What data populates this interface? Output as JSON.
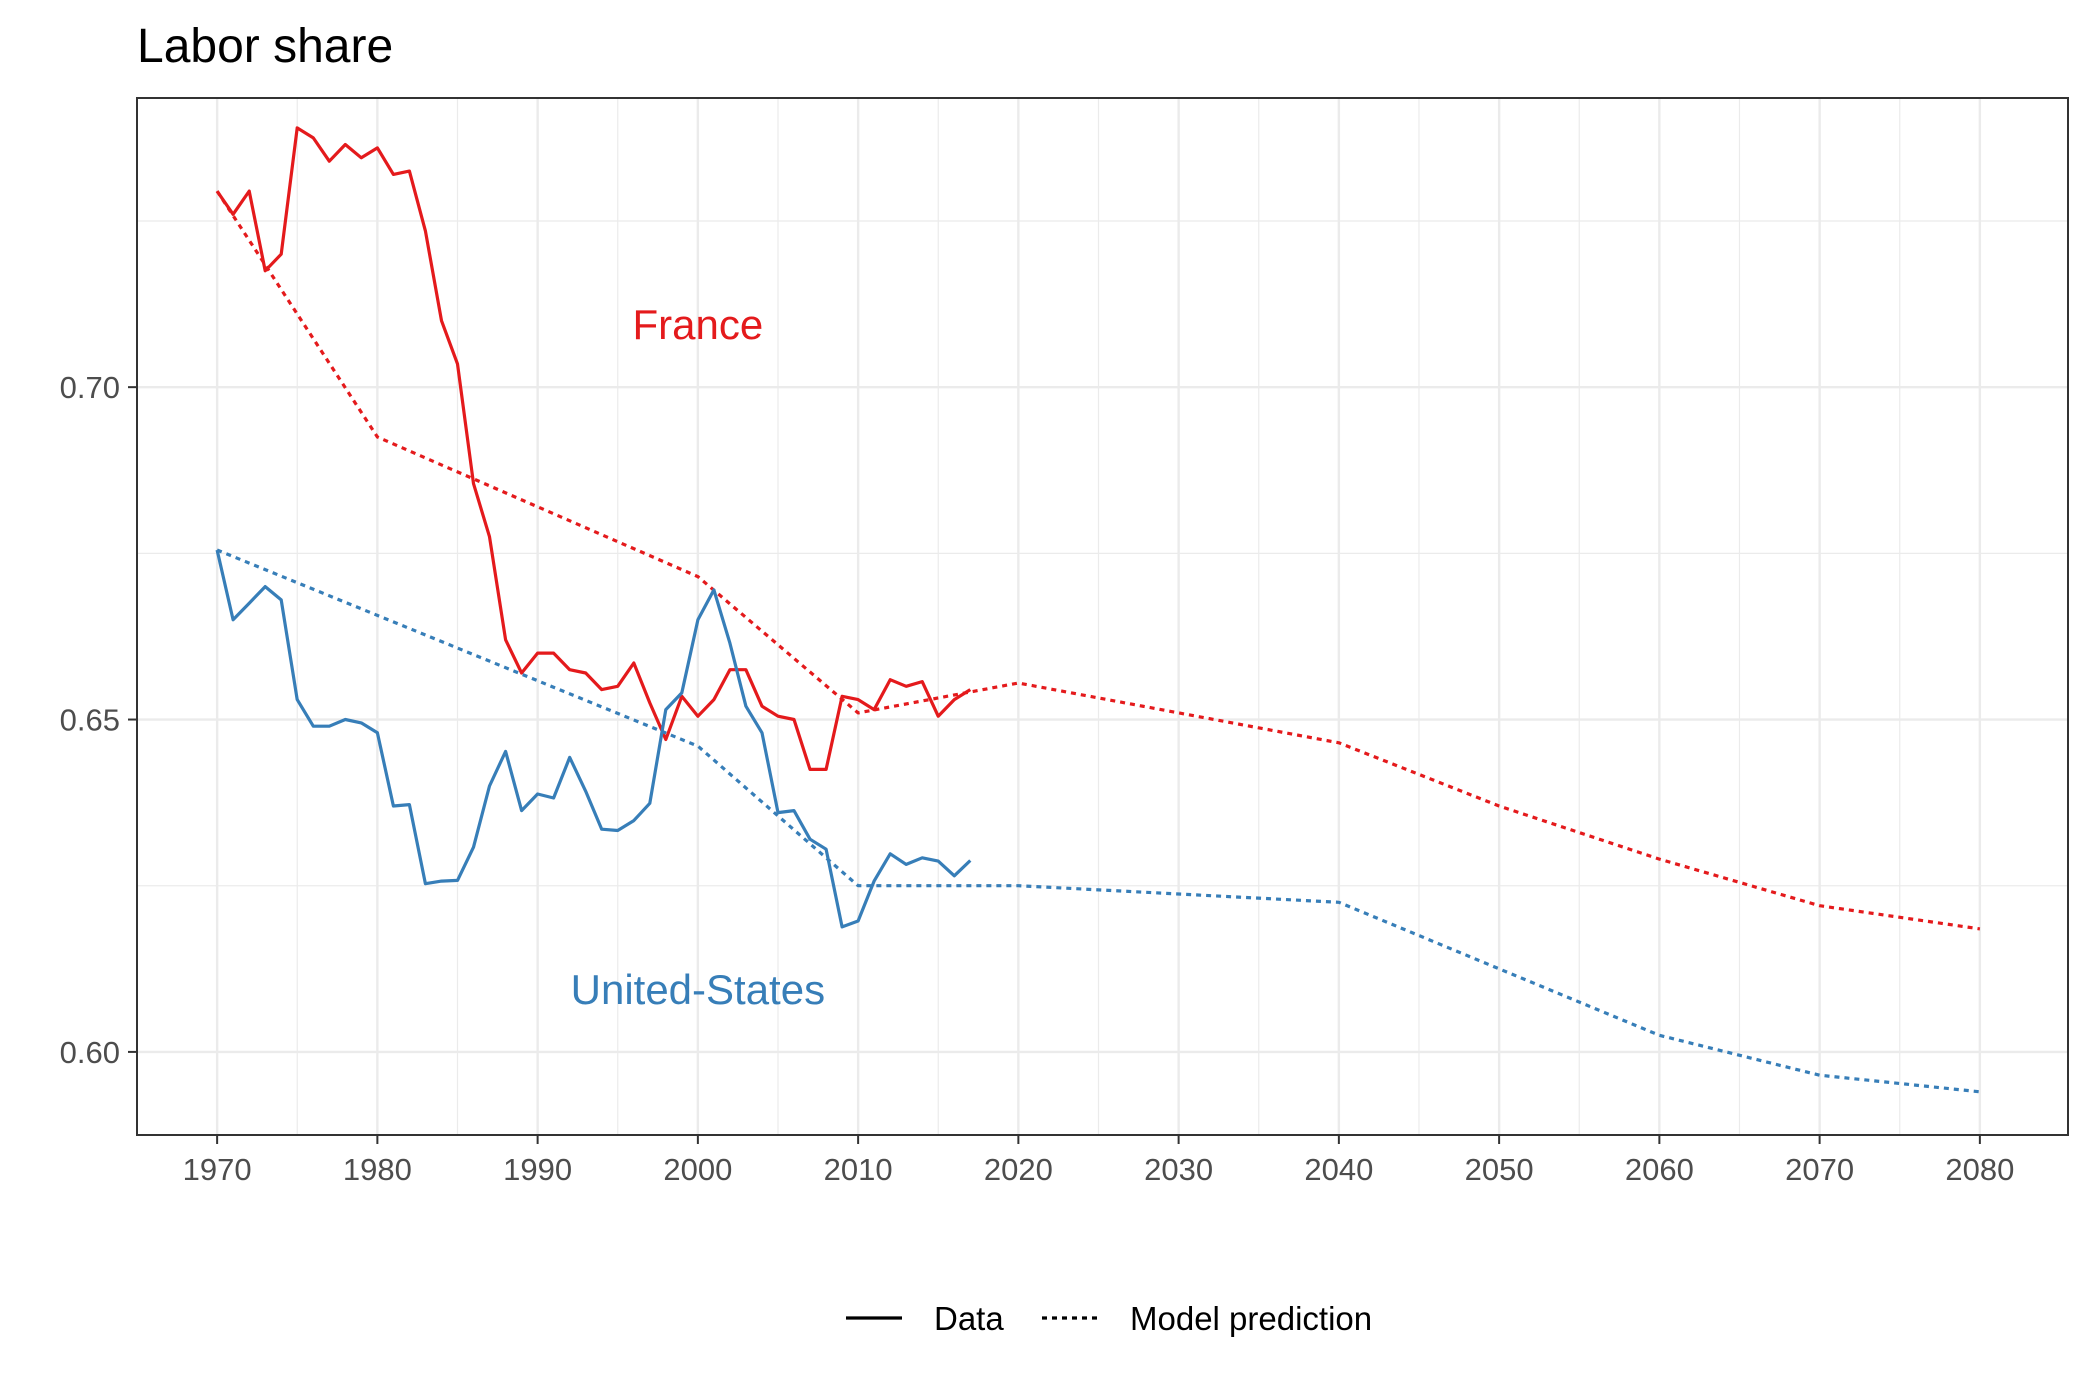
{
  "chart_data": {
    "type": "line",
    "title": "Labor share",
    "xlabel": "",
    "ylabel": "",
    "xlim": [
      1970,
      2080
    ],
    "ylim": [
      0.5875,
      0.7435
    ],
    "x_ticks": [
      1970,
      1980,
      1990,
      2000,
      2010,
      2020,
      2030,
      2040,
      2050,
      2060,
      2070,
      2080
    ],
    "x_tick_labels": [
      "1970",
      "1980",
      "1990",
      "2000",
      "2010",
      "2020",
      "2030",
      "2040",
      "2050",
      "2060",
      "2070",
      "2080"
    ],
    "y_ticks": [
      0.6,
      0.65,
      0.7
    ],
    "y_tick_labels": [
      "0.60",
      "0.65",
      "0.70"
    ],
    "grid": true,
    "legend_position": "bottom",
    "legend": [
      {
        "label": "Data",
        "linestyle": "solid"
      },
      {
        "label": "Model prediction",
        "linestyle": "dotted"
      }
    ],
    "annotations": [
      {
        "text": "France",
        "x": 2000,
        "y": 0.7095,
        "color": "#e41a1c"
      },
      {
        "text": "United-States",
        "x": 2000,
        "y": 0.6095,
        "color": "#377eb8"
      }
    ],
    "series": [
      {
        "country": "France",
        "kind": "data",
        "color": "#e41a1c",
        "linestyle": "solid",
        "x": [
          1970,
          1971,
          1972,
          1973,
          1974,
          1975,
          1976,
          1977,
          1978,
          1979,
          1980,
          1981,
          1982,
          1983,
          1984,
          1985,
          1986,
          1987,
          1988,
          1989,
          1990,
          1991,
          1992,
          1993,
          1994,
          1995,
          1996,
          1997,
          1998,
          1999,
          2000,
          2001,
          2002,
          2003,
          2004,
          2005,
          2006,
          2007,
          2008,
          2009,
          2010,
          2011,
          2012,
          2013,
          2014,
          2015,
          2016,
          2017
        ],
        "y": [
          0.7295,
          0.726,
          0.7295,
          0.7175,
          0.72,
          0.739,
          0.7375,
          0.734,
          0.7365,
          0.7345,
          0.736,
          0.732,
          0.7325,
          0.7235,
          0.71,
          0.7035,
          0.6855,
          0.6775,
          0.662,
          0.657,
          0.66,
          0.66,
          0.6575,
          0.657,
          0.6545,
          0.655,
          0.6585,
          0.6525,
          0.647,
          0.6535,
          0.6505,
          0.653,
          0.6575,
          0.6575,
          0.652,
          0.6505,
          0.65,
          0.6425,
          0.6425,
          0.6535,
          0.653,
          0.6515,
          0.656,
          0.655,
          0.6557,
          0.6505,
          0.653,
          0.6545
        ]
      },
      {
        "country": "France",
        "kind": "model",
        "color": "#e41a1c",
        "linestyle": "dotted",
        "x": [
          1970,
          1980,
          2000,
          2010,
          2020,
          2040,
          2050,
          2060,
          2070,
          2080
        ],
        "y": [
          0.7295,
          0.6925,
          0.6715,
          0.651,
          0.6555,
          0.6465,
          0.637,
          0.629,
          0.622,
          0.6185
        ]
      },
      {
        "country": "United-States",
        "kind": "data",
        "color": "#377eb8",
        "linestyle": "solid",
        "x": [
          1970,
          1971,
          1972,
          1973,
          1974,
          1975,
          1976,
          1977,
          1978,
          1979,
          1980,
          1981,
          1982,
          1983,
          1984,
          1985,
          1986,
          1987,
          1988,
          1989,
          1990,
          1991,
          1992,
          1993,
          1994,
          1995,
          1996,
          1997,
          1998,
          1999,
          2000,
          2001,
          2002,
          2003,
          2004,
          2005,
          2006,
          2007,
          2008,
          2009,
          2010,
          2011,
          2012,
          2013,
          2014,
          2015,
          2016,
          2017
        ],
        "y": [
          0.6755,
          0.665,
          0.6675,
          0.67,
          0.668,
          0.653,
          0.649,
          0.649,
          0.65,
          0.6495,
          0.648,
          0.637,
          0.6372,
          0.6253,
          0.6257,
          0.6258,
          0.6308,
          0.64,
          0.6452,
          0.6363,
          0.6388,
          0.6382,
          0.6443,
          0.6392,
          0.6335,
          0.6333,
          0.6348,
          0.6374,
          0.6515,
          0.654,
          0.665,
          0.6695,
          0.6615,
          0.652,
          0.648,
          0.636,
          0.6363,
          0.632,
          0.6305,
          0.6188,
          0.6197,
          0.6257,
          0.6298,
          0.6282,
          0.6292,
          0.6287,
          0.6265,
          0.6288
        ]
      },
      {
        "country": "United-States",
        "kind": "model",
        "color": "#377eb8",
        "linestyle": "dotted",
        "x": [
          1970,
          2000,
          2010,
          2020,
          2040,
          2050,
          2060,
          2070,
          2080
        ],
        "y": [
          0.6755,
          0.646,
          0.625,
          0.625,
          0.6225,
          0.6125,
          0.6025,
          0.5965,
          0.594
        ]
      }
    ]
  }
}
